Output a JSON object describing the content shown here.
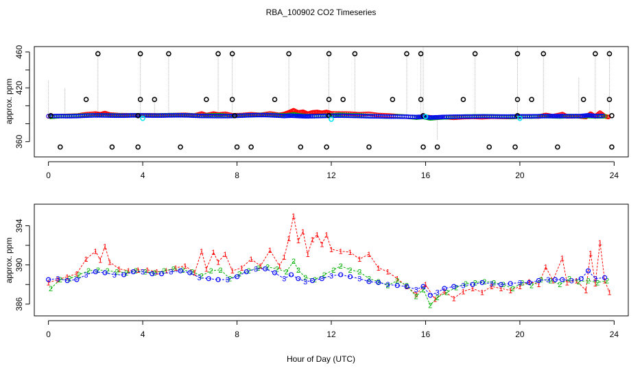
{
  "figure": {
    "title": "RBA_100902  CO2 Timeseries",
    "xlabel": "Hour of Day (UTC)",
    "colors": {
      "black": "#000000",
      "red": "#ff0000",
      "green": "#00b000",
      "blue": "#0000ff",
      "cyan": "#00e5ee",
      "gray": "#b0b0b0"
    }
  },
  "chart_data": [
    {
      "id": "top",
      "type": "scatter",
      "title": "RBA_100902  CO2 Timeseries",
      "xlabel": "",
      "ylabel": "approx. ppm",
      "xlim": [
        -0.6,
        24.6
      ],
      "ylim": [
        343,
        466
      ],
      "xticks": [
        0,
        4,
        8,
        12,
        16,
        20,
        24
      ],
      "yticks": [
        360,
        380,
        400,
        420,
        440,
        460
      ],
      "ytick_labels": [
        "360",
        "",
        "",
        "420",
        "",
        "460"
      ],
      "description_series": [
        "CO2 level 1 (red)",
        "CO2 level 2 (green)",
        "CO2 level 3 (blue)",
        "calibration (cyan)",
        "high/low flags (black)"
      ],
      "black_high_x": [
        2.1,
        3.9,
        5.1,
        7.2,
        7.8,
        10.2,
        11.9,
        13.0,
        15.2,
        15.8,
        18.1,
        19.9,
        21.0,
        23.2,
        23.8
      ],
      "black_high_y": 458,
      "black_mid_x": [
        1.6,
        3.9,
        4.5,
        6.7,
        7.8,
        9.6,
        11.9,
        12.5,
        14.6,
        15.8,
        17.6,
        19.9,
        20.5,
        22.7,
        23.8
      ],
      "black_mid_y": 407,
      "black_low_x": [
        0.5,
        2.7,
        3.8,
        5.6,
        8.0,
        8.6,
        10.7,
        11.8,
        13.6,
        15.9,
        16.5,
        18.7,
        19.8,
        21.6,
        23.9
      ],
      "black_low_y": 354,
      "black_base_x": [
        0.1,
        3.8,
        7.9,
        11.9,
        15.9,
        19.9,
        23.9
      ],
      "black_base_y": 389,
      "cyan_x": [
        4.0,
        12.0,
        16.0,
        20.0
      ],
      "cyan_y": [
        386,
        385,
        388,
        386
      ],
      "gray_spike_x": [
        0.0,
        0.7,
        2.1,
        3.9,
        4.5,
        5.1,
        7.2,
        7.8,
        10.2,
        11.9,
        13.0,
        15.2,
        15.8,
        15.9,
        16.5,
        18.1,
        19.9,
        21.0,
        22.5,
        23.2,
        23.8
      ],
      "gray_spike_y": [
        428,
        420,
        462,
        462,
        410,
        460,
        462,
        462,
        460,
        462,
        460,
        462,
        462,
        466,
        362,
        462,
        466,
        462,
        432,
        462,
        462
      ]
    },
    {
      "id": "bottom",
      "type": "line",
      "title": "",
      "xlabel": "Hour of Day (UTC)",
      "ylabel": "approx. ppm",
      "xlim": [
        -0.6,
        24.6
      ],
      "ylim": [
        384.8,
        396.2
      ],
      "xticks": [
        0,
        4,
        8,
        12,
        16,
        20,
        24
      ],
      "yticks": [
        386,
        388,
        390,
        392,
        394
      ],
      "ytick_labels": [
        "386",
        "",
        "390",
        "",
        "394"
      ],
      "series": [
        {
          "name": "1",
          "color": "red",
          "x": [
            0.0,
            0.4,
            0.8,
            1.2,
            1.6,
            2.0,
            2.2,
            2.4,
            2.6,
            3.0,
            3.4,
            3.8,
            4.2,
            4.6,
            5.0,
            5.4,
            5.8,
            6.2,
            6.5,
            6.7,
            7.0,
            7.2,
            7.5,
            7.8,
            8.2,
            8.6,
            9.0,
            9.4,
            9.8,
            10.0,
            10.2,
            10.4,
            10.6,
            10.8,
            11.0,
            11.2,
            11.4,
            11.6,
            11.8,
            12.0,
            12.4,
            12.8,
            13.2,
            13.6,
            14.0,
            14.4,
            14.8,
            15.2,
            15.6,
            16.0,
            16.4,
            16.8,
            17.2,
            17.6,
            18.0,
            18.4,
            18.8,
            19.2,
            19.6,
            20.0,
            20.4,
            20.8,
            21.1,
            21.4,
            21.8,
            22.0,
            22.4,
            22.8,
            23.0,
            23.2,
            23.4,
            23.6,
            23.8
          ],
          "y": [
            388.2,
            388.5,
            388.8,
            389.1,
            390.6,
            391.4,
            390.5,
            391.9,
            390.3,
            389.6,
            389.4,
            389.5,
            389.5,
            389.3,
            389.4,
            389.7,
            389.9,
            389.2,
            391.4,
            389.6,
            391.3,
            390.3,
            391.1,
            389.4,
            389.7,
            390.6,
            389.9,
            391.5,
            389.9,
            390.8,
            392.7,
            395.0,
            392.5,
            393.4,
            391.1,
            392.6,
            393.1,
            392.1,
            393.1,
            391.6,
            391.4,
            391.3,
            390.6,
            391.1,
            389.7,
            389.3,
            388.6,
            387.8,
            387.0,
            388.0,
            386.5,
            387.3,
            386.6,
            387.3,
            387.6,
            387.2,
            387.8,
            387.6,
            387.4,
            387.8,
            388.3,
            388.0,
            389.8,
            388.4,
            390.7,
            388.2,
            388.4,
            387.4,
            391.2,
            388.1,
            392.3,
            388.4,
            387.2
          ]
        },
        {
          "name": "2",
          "color": "green",
          "x": [
            0.1,
            0.5,
            0.9,
            1.3,
            1.7,
            2.1,
            2.5,
            2.9,
            3.3,
            3.7,
            4.1,
            4.5,
            4.9,
            5.3,
            5.7,
            6.1,
            6.5,
            6.9,
            7.3,
            7.7,
            8.1,
            8.5,
            8.9,
            9.3,
            9.7,
            10.1,
            10.4,
            10.6,
            10.9,
            11.3,
            11.7,
            12.1,
            12.4,
            12.8,
            13.2,
            13.6,
            14.0,
            14.4,
            14.8,
            15.2,
            15.6,
            15.9,
            16.2,
            16.5,
            16.9,
            17.3,
            17.7,
            18.1,
            18.5,
            18.9,
            19.3,
            19.7,
            20.1,
            20.5,
            20.9,
            21.3,
            21.7,
            22.1,
            22.5,
            22.9,
            23.3,
            23.7
          ],
          "y": [
            387.6,
            388.5,
            388.6,
            389.0,
            389.4,
            389.5,
            389.4,
            389.3,
            389.2,
            389.4,
            389.3,
            389.2,
            389.4,
            389.6,
            389.5,
            389.3,
            388.9,
            389.4,
            389.5,
            388.6,
            389.1,
            389.4,
            389.7,
            389.8,
            389.6,
            389.3,
            390.4,
            389.5,
            388.7,
            388.5,
            389.0,
            389.5,
            389.9,
            389.5,
            389.3,
            388.6,
            388.3,
            387.9,
            388.4,
            387.9,
            386.8,
            387.5,
            385.9,
            386.7,
            387.2,
            387.7,
            388.1,
            388.2,
            388.3,
            388.2,
            388.0,
            387.6,
            388.2,
            387.9,
            388.5,
            388.4,
            388.0,
            388.6,
            388.3,
            388.4,
            388.2,
            388.4
          ]
        },
        {
          "name": "3",
          "color": "blue",
          "x": [
            0.0,
            0.4,
            0.8,
            1.2,
            1.6,
            2.0,
            2.4,
            2.8,
            3.2,
            3.6,
            4.0,
            4.4,
            4.8,
            5.2,
            5.6,
            6.0,
            6.4,
            6.8,
            7.2,
            7.6,
            8.0,
            8.4,
            8.8,
            9.2,
            9.6,
            10.0,
            10.3,
            10.6,
            10.9,
            11.2,
            11.6,
            12.0,
            12.4,
            12.8,
            13.2,
            13.6,
            14.0,
            14.4,
            14.8,
            15.2,
            15.6,
            15.9,
            16.2,
            16.5,
            16.8,
            17.2,
            17.6,
            18.0,
            18.4,
            18.8,
            19.2,
            19.6,
            20.0,
            20.4,
            20.8,
            21.2,
            21.5,
            21.8,
            22.2,
            22.6,
            22.9,
            23.2,
            23.6
          ],
          "y": [
            388.5,
            388.6,
            388.4,
            388.5,
            389.0,
            389.3,
            389.2,
            389.0,
            389.0,
            389.3,
            389.3,
            389.1,
            389.1,
            389.3,
            389.4,
            389.2,
            388.7,
            388.6,
            388.5,
            388.5,
            388.8,
            389.3,
            389.6,
            389.6,
            389.2,
            388.6,
            389.0,
            388.6,
            388.3,
            388.4,
            388.6,
            388.9,
            389.0,
            388.8,
            388.6,
            388.3,
            388.2,
            388.0,
            387.9,
            387.8,
            387.5,
            387.8,
            386.9,
            387.2,
            387.6,
            387.8,
            387.9,
            388.0,
            388.2,
            388.1,
            388.0,
            388.1,
            388.2,
            388.2,
            388.4,
            388.5,
            388.5,
            388.5,
            388.4,
            388.6,
            389.4,
            388.6,
            388.7
          ]
        }
      ]
    }
  ]
}
